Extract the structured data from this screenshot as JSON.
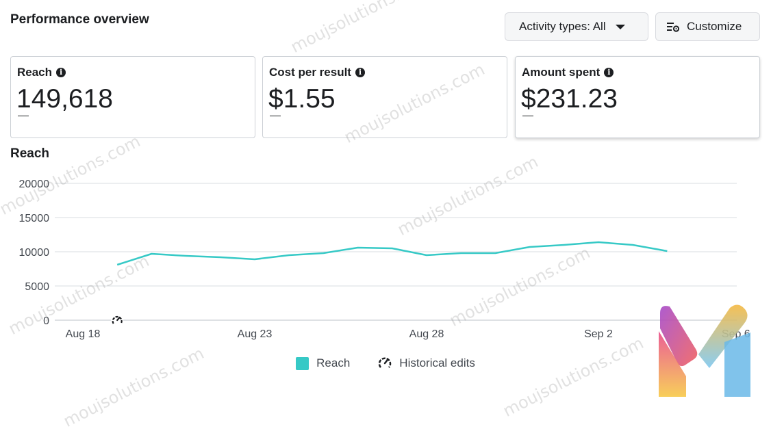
{
  "header": {
    "title": "Performance overview",
    "activity_button": "Activity types: All",
    "customize_button": "Customize"
  },
  "metrics": [
    {
      "label": "Reach",
      "value": "149,618",
      "change": ""
    },
    {
      "label": "Cost per result",
      "value": "$1.55",
      "change": ""
    },
    {
      "label": "Amount spent",
      "value": "$231.23",
      "change": ""
    }
  ],
  "section_title": "Reach",
  "legend": {
    "reach": "Reach",
    "historical": "Historical edits"
  },
  "watermark_text": "moujsolutions.com",
  "colors": {
    "series": "#36c9c6",
    "grid": "#dadde1"
  },
  "chart_data": {
    "type": "line",
    "title": "",
    "x_ticks": [
      "Aug 18",
      "Aug 23",
      "Aug 28",
      "Sep 2",
      "Sep 6"
    ],
    "x_tick_day_index": [
      0,
      5,
      10,
      15,
      19
    ],
    "y_ticks": [
      0,
      5000,
      10000,
      15000,
      20000
    ],
    "ylim": [
      0,
      20000
    ],
    "grid": true,
    "legend_position": "bottom-center",
    "series": [
      {
        "name": "Reach",
        "x": [
          "Aug 19",
          "Aug 20",
          "Aug 21",
          "Aug 22",
          "Aug 23",
          "Aug 24",
          "Aug 25",
          "Aug 26",
          "Aug 27",
          "Aug 28",
          "Aug 29",
          "Aug 30",
          "Aug 31",
          "Sep 1",
          "Sep 2",
          "Sep 3",
          "Sep 4"
        ],
        "values": [
          8100,
          9700,
          9400,
          9200,
          8900,
          9500,
          9800,
          10600,
          10500,
          9500,
          9800,
          9800,
          10700,
          11000,
          11400,
          11000,
          10100
        ]
      }
    ],
    "annotations": [
      {
        "type": "historical-edit",
        "x": "Aug 19"
      }
    ]
  }
}
